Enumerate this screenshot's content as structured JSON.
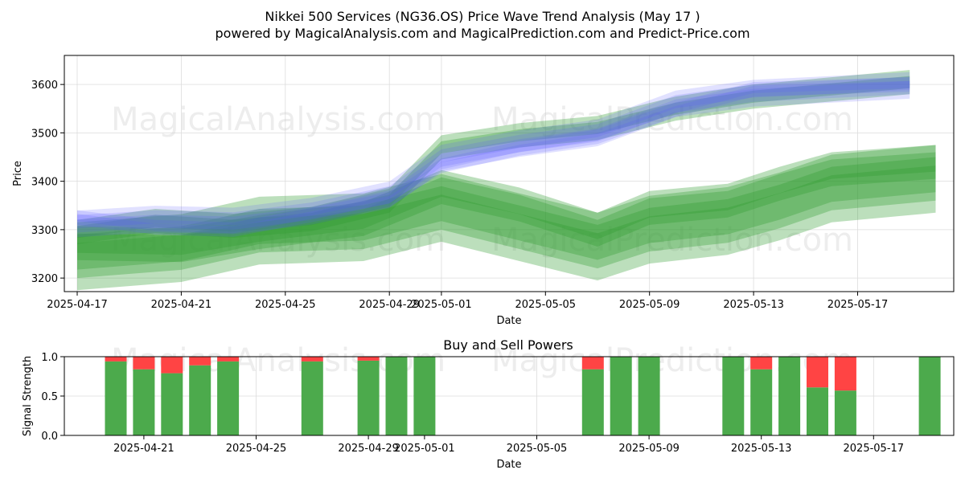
{
  "title_line1": "Nikkei 500 Services (NG36.OS) Price Wave Trend Analysis (May 17 )",
  "title_line2": "powered by MagicalAnalysis.com and MagicalPrediction.com and Predict-Price.com",
  "watermark_left": "MagicalAnalysis.com",
  "watermark_right": "MagicalPrediction.com",
  "colors": {
    "green": "#2e9a2e",
    "blue": "#5b5bff",
    "buy": "#4caa4c",
    "sell": "#ff4444",
    "grid": "#dcdcdc"
  },
  "chart_data": [
    {
      "type": "area",
      "ylabel": "Price",
      "xlabel": "Date",
      "ylim": [
        3172,
        3660
      ],
      "xlim": [
        "2025-04-16",
        "2025-05-21"
      ],
      "y_ticks": [
        3200,
        3300,
        3400,
        3500,
        3600
      ],
      "x_ticks": [
        "2025-04-17",
        "2025-04-21",
        "2025-04-25",
        "2025-04-29",
        "2025-05-01",
        "2025-05-05",
        "2025-05-09",
        "2025-05-13",
        "2025-05-17"
      ],
      "grid": true,
      "series": [
        {
          "kind": "band",
          "color": "green",
          "x": [
            "2025-04-17",
            "2025-04-21",
            "2025-04-24",
            "2025-04-28",
            "2025-05-01",
            "2025-05-04",
            "2025-05-07",
            "2025-05-09",
            "2025-05-12",
            "2025-05-14",
            "2025-05-16",
            "2025-05-20"
          ],
          "mid": [
            3245,
            3262,
            3298,
            3305,
            3345,
            3305,
            3265,
            3300,
            3318,
            3348,
            3385,
            3405
          ],
          "widths": [
            55,
            90,
            140
          ]
        },
        {
          "kind": "band",
          "color": "green",
          "x": [
            "2025-04-17",
            "2025-04-21",
            "2025-04-24",
            "2025-04-28",
            "2025-05-01",
            "2025-05-04",
            "2025-05-07",
            "2025-05-09",
            "2025-05-12",
            "2025-05-14",
            "2025-05-16",
            "2025-05-20"
          ],
          "mid": [
            3272,
            3268,
            3295,
            3322,
            3388,
            3352,
            3300,
            3345,
            3360,
            3395,
            3425,
            3440
          ],
          "widths": [
            40,
            70
          ]
        },
        {
          "kind": "band",
          "color": "green",
          "x": [
            "2025-04-17",
            "2025-04-20",
            "2025-04-23",
            "2025-04-26",
            "2025-04-29",
            "2025-05-01",
            "2025-05-04",
            "2025-05-07",
            "2025-05-10",
            "2025-05-13",
            "2025-05-16",
            "2025-05-19"
          ],
          "mid": [
            3295,
            3318,
            3308,
            3322,
            3360,
            3470,
            3495,
            3510,
            3550,
            3575,
            3590,
            3605
          ],
          "widths": [
            25,
            50
          ]
        },
        {
          "kind": "band",
          "color": "blue",
          "x": [
            "2025-04-17",
            "2025-04-20",
            "2025-04-23",
            "2025-04-26",
            "2025-04-29",
            "2025-05-01",
            "2025-05-04",
            "2025-05-07",
            "2025-05-10",
            "2025-05-13",
            "2025-05-16",
            "2025-05-19"
          ],
          "mid": [
            3312,
            3322,
            3318,
            3338,
            3372,
            3448,
            3478,
            3500,
            3560,
            3582,
            3590,
            3598
          ],
          "widths": [
            18,
            36,
            55
          ]
        },
        {
          "kind": "band",
          "color": "blue",
          "x": [
            "2025-04-17",
            "2025-04-20",
            "2025-04-23",
            "2025-04-26",
            "2025-04-29",
            "2025-05-01",
            "2025-05-04",
            "2025-05-07",
            "2025-05-10",
            "2025-05-13",
            "2025-05-16",
            "2025-05-19"
          ],
          "mid": [
            3325,
            3305,
            3300,
            3330,
            3362,
            3432,
            3468,
            3492,
            3548,
            3590,
            3595,
            3600
          ],
          "widths": [
            15,
            30
          ]
        }
      ]
    },
    {
      "type": "bar",
      "title": "Buy and Sell Powers",
      "ylabel": "Signal Strength",
      "xlabel": "Date",
      "ylim": [
        0,
        1.0
      ],
      "y_ticks": [
        0.0,
        0.5,
        1.0
      ],
      "x_ticks": [
        "2025-04-21",
        "2025-04-25",
        "2025-04-29",
        "2025-05-01",
        "2025-05-05",
        "2025-05-09",
        "2025-05-13",
        "2025-05-17"
      ],
      "series": [
        {
          "name": "Buy",
          "x": [
            "2025-04-20",
            "2025-04-21",
            "2025-04-22",
            "2025-04-23",
            "2025-04-24",
            "2025-04-27",
            "2025-04-29",
            "2025-04-30",
            "2025-05-01",
            "2025-05-07",
            "2025-05-08",
            "2025-05-09",
            "2025-05-12",
            "2025-05-13",
            "2025-05-14",
            "2025-05-15",
            "2025-05-16",
            "2025-05-19"
          ],
          "values": [
            0.94,
            0.84,
            0.79,
            0.89,
            0.94,
            0.94,
            0.95,
            1.0,
            1.0,
            0.84,
            1.0,
            1.0,
            1.0,
            0.84,
            1.0,
            0.61,
            0.57,
            1.0
          ]
        },
        {
          "name": "Sell",
          "x": [
            "2025-04-20",
            "2025-04-21",
            "2025-04-22",
            "2025-04-23",
            "2025-04-24",
            "2025-04-27",
            "2025-04-29",
            "2025-04-30",
            "2025-05-01",
            "2025-05-07",
            "2025-05-08",
            "2025-05-09",
            "2025-05-12",
            "2025-05-13",
            "2025-05-14",
            "2025-05-15",
            "2025-05-16",
            "2025-05-19"
          ],
          "values": [
            0.06,
            0.16,
            0.21,
            0.11,
            0.06,
            0.06,
            0.05,
            0.0,
            0.0,
            0.16,
            0.0,
            0.0,
            0.0,
            0.16,
            0.0,
            0.39,
            0.43,
            0.0
          ]
        }
      ]
    }
  ]
}
